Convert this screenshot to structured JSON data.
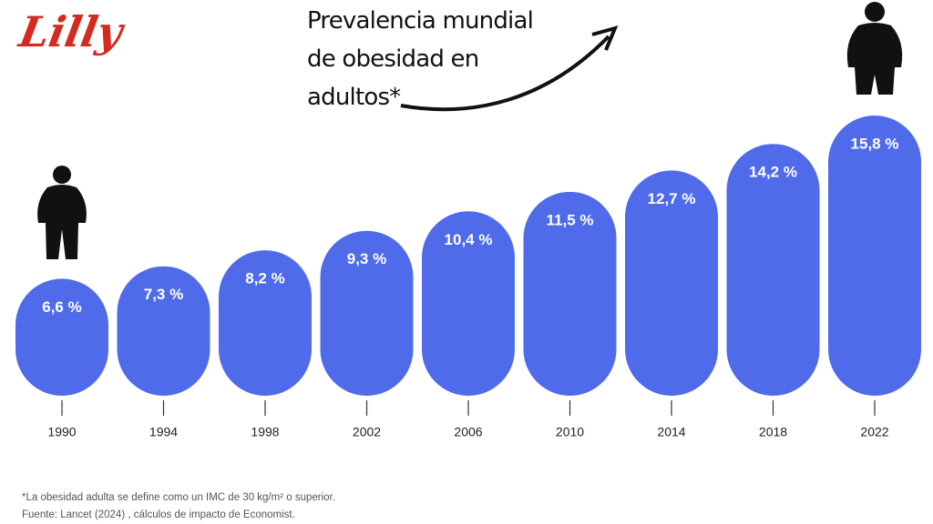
{
  "logo": "Lilly",
  "chart_data": {
    "type": "bar",
    "title": "Prevalencia mundial de obesidad en adultos*",
    "categories": [
      "1990",
      "1994",
      "1998",
      "2002",
      "2006",
      "2010",
      "2014",
      "2018",
      "2022"
    ],
    "values": [
      6.6,
      7.3,
      8.2,
      9.3,
      10.4,
      11.5,
      12.7,
      14.2,
      15.8
    ],
    "value_labels": [
      "6,6 %",
      "7,3 %",
      "8,2 %",
      "9,3 %",
      "10,4 %",
      "11,5 %",
      "12,7 %",
      "14,2 %",
      "15,8 %"
    ],
    "color": "#4f6bea"
  },
  "footnotes": [
    "*La obesidad adulta se define como un IMC de 30 kg/m² o superior.",
    "Fuente: Lancet (2024) , cálculos de impacto de Economist."
  ]
}
